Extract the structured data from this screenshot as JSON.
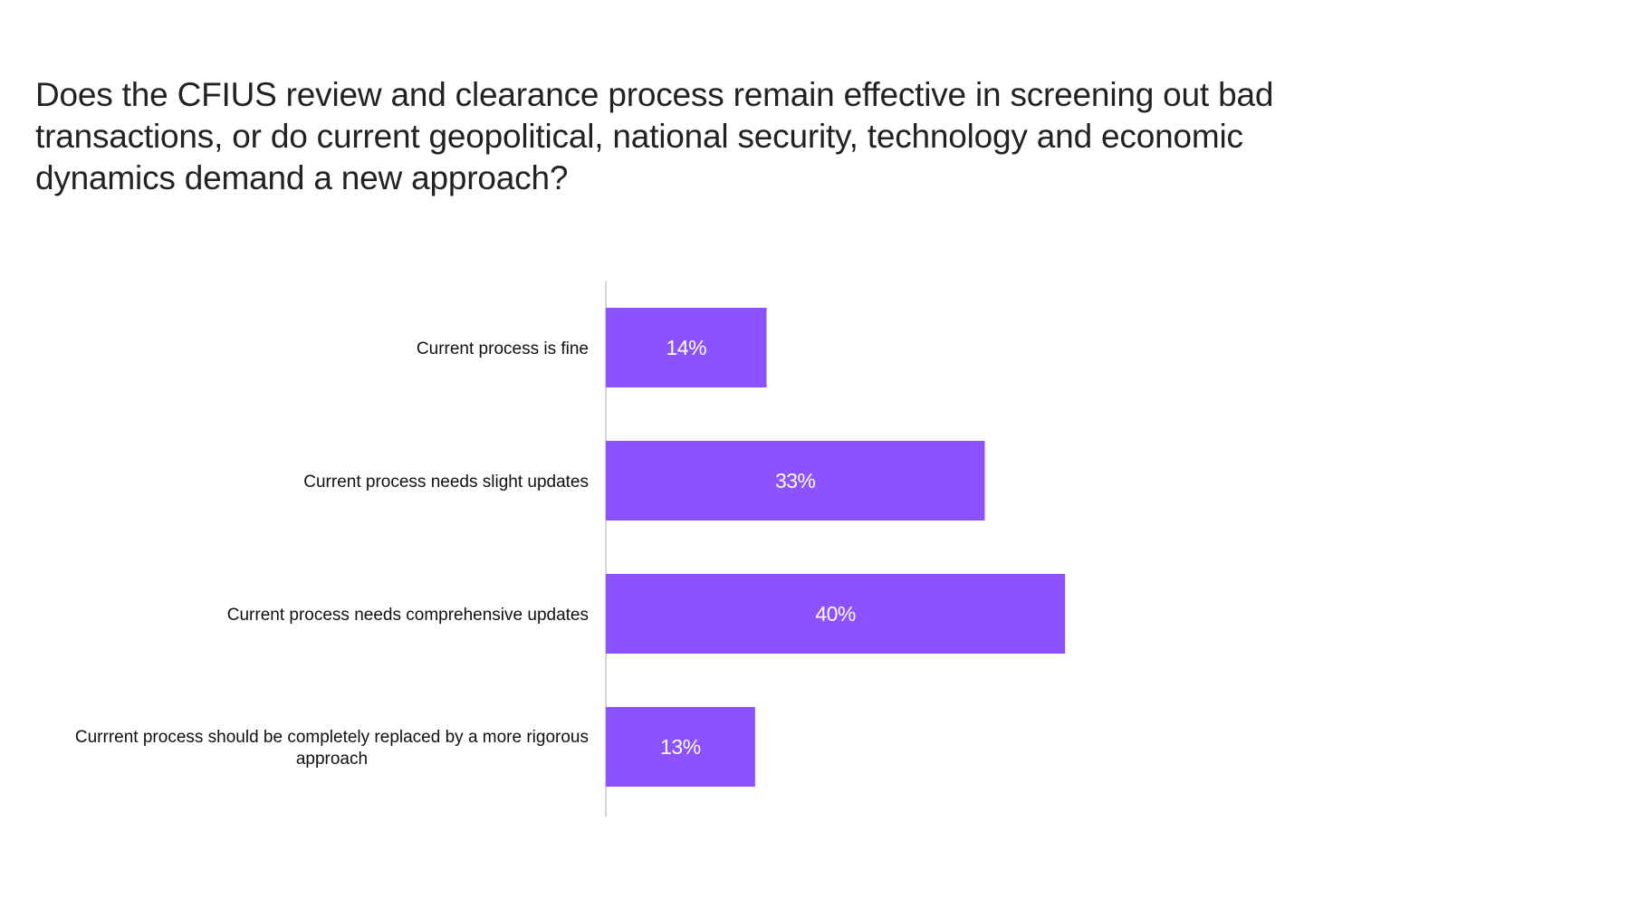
{
  "chart_data": {
    "type": "bar",
    "orientation": "horizontal",
    "title": "Does the CFIUS review and clearance process remain effective in screening out bad transactions, or do current geopolitical, national security, technology and economic dynamics demand a new approach?",
    "categories": [
      "Current process is fine",
      "Current process needs slight updates",
      "Current process needs comprehensive updates",
      "Currrent process should be completely replaced by a more rigorous approach"
    ],
    "category_lines": [
      [
        "Current process is fine"
      ],
      [
        "Current process needs slight updates"
      ],
      [
        "Current process needs comprehensive updates"
      ],
      [
        "Currrent process should be completely replaced by a more rigorous",
        "approach"
      ]
    ],
    "values": [
      14,
      33,
      40,
      13
    ],
    "data_labels": [
      "14%",
      "33%",
      "40%",
      "13%"
    ],
    "unit": "%",
    "xlabel": "",
    "ylabel": "",
    "grid": false,
    "legend": "none",
    "bar_color": "#8c52ff"
  }
}
